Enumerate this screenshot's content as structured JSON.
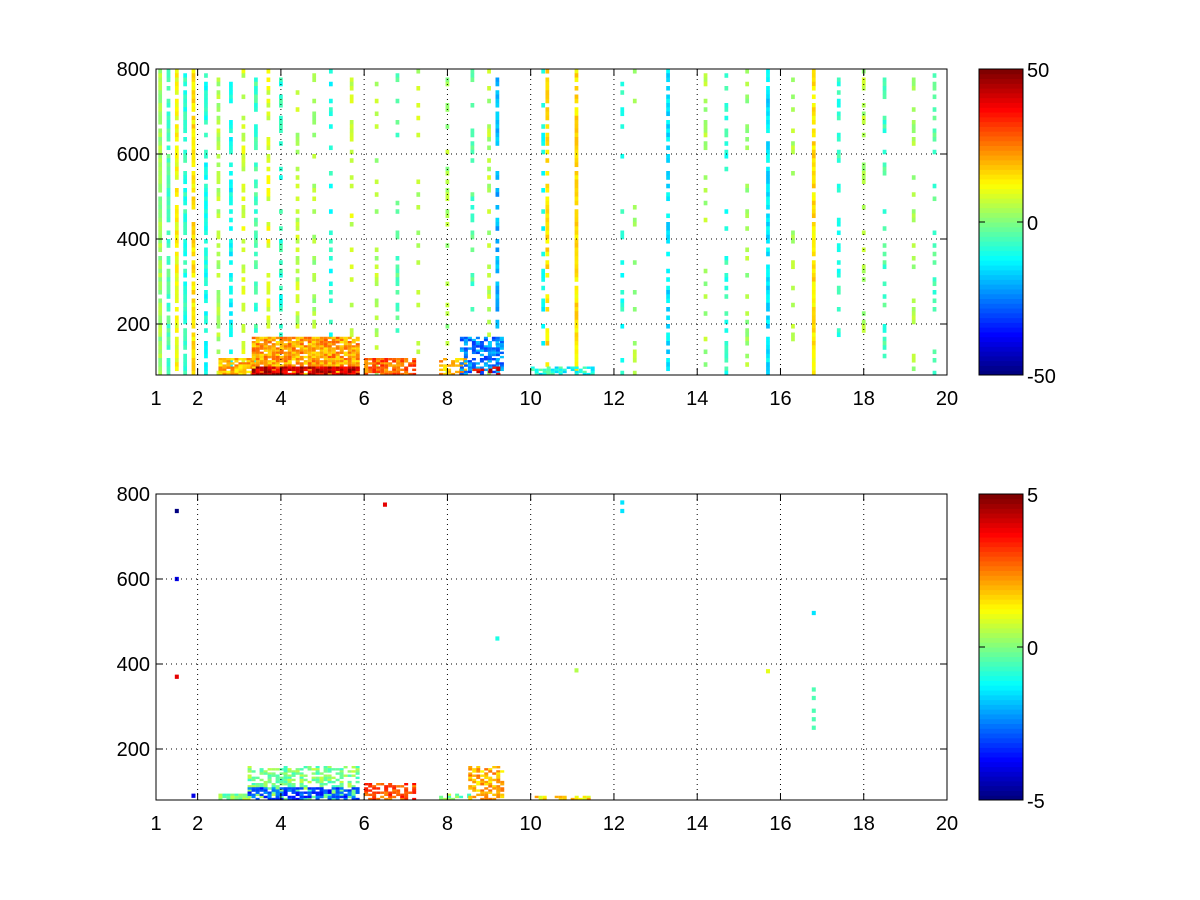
{
  "chart_data": [
    {
      "type": "heatmap",
      "title": "",
      "xlabel": "",
      "ylabel": "",
      "xlim": [
        1,
        20
      ],
      "ylim": [
        80,
        800
      ],
      "xticks": [
        1,
        2,
        4,
        6,
        8,
        10,
        12,
        14,
        16,
        18,
        20
      ],
      "yticks": [
        200,
        400,
        600,
        800
      ],
      "grid": true,
      "colormap": "jet",
      "colorbar": {
        "clim": [
          -50,
          50
        ],
        "ticks": [
          -50,
          0,
          50
        ]
      },
      "columns": [
        {
          "x": 1.1,
          "span": [
            80,
            800
          ],
          "value": 3,
          "density": 0.9
        },
        {
          "x": 1.3,
          "span": [
            80,
            800
          ],
          "value": -5,
          "density": 0.8
        },
        {
          "x": 1.5,
          "span": [
            80,
            800
          ],
          "value": 12,
          "density": 0.8
        },
        {
          "x": 1.7,
          "span": [
            80,
            800
          ],
          "value": -8,
          "density": 0.8
        },
        {
          "x": 1.9,
          "span": [
            80,
            800
          ],
          "value": 15,
          "density": 0.9
        },
        {
          "x": 2.2,
          "span": [
            80,
            800
          ],
          "value": -10,
          "density": 0.7
        },
        {
          "x": 2.5,
          "span": [
            80,
            800
          ],
          "value": 5,
          "density": 0.6
        },
        {
          "x": 2.8,
          "span": [
            80,
            800
          ],
          "value": -12,
          "density": 0.6
        },
        {
          "x": 3.1,
          "span": [
            80,
            800
          ],
          "value": 8,
          "density": 0.5
        },
        {
          "x": 3.4,
          "span": [
            80,
            800
          ],
          "value": -6,
          "density": 0.55
        },
        {
          "x": 3.7,
          "span": [
            80,
            800
          ],
          "value": 10,
          "density": 0.45
        },
        {
          "x": 4.0,
          "span": [
            80,
            800
          ],
          "value": -8,
          "density": 0.45
        },
        {
          "x": 4.4,
          "span": [
            80,
            800
          ],
          "value": 6,
          "density": 0.35
        },
        {
          "x": 4.8,
          "span": [
            80,
            800
          ],
          "value": 4,
          "density": 0.35
        },
        {
          "x": 5.2,
          "span": [
            80,
            800
          ],
          "value": -10,
          "density": 0.3
        },
        {
          "x": 5.7,
          "span": [
            80,
            800
          ],
          "value": 8,
          "density": 0.35
        },
        {
          "x": 6.3,
          "span": [
            80,
            800
          ],
          "value": 5,
          "density": 0.3
        },
        {
          "x": 6.8,
          "span": [
            80,
            800
          ],
          "value": -4,
          "density": 0.3
        },
        {
          "x": 7.3,
          "span": [
            80,
            800
          ],
          "value": 6,
          "density": 0.25
        },
        {
          "x": 8.0,
          "span": [
            80,
            800
          ],
          "value": 4,
          "density": 0.3
        },
        {
          "x": 8.6,
          "span": [
            80,
            800
          ],
          "value": -5,
          "density": 0.3
        },
        {
          "x": 9.0,
          "span": [
            80,
            800
          ],
          "value": 5,
          "density": 0.35
        },
        {
          "x": 9.2,
          "span": [
            80,
            800
          ],
          "value": -20,
          "density": 0.6
        },
        {
          "x": 10.3,
          "span": [
            80,
            800
          ],
          "value": -12,
          "density": 0.35
        },
        {
          "x": 10.4,
          "span": [
            80,
            800
          ],
          "value": 15,
          "density": 0.7
        },
        {
          "x": 11.1,
          "span": [
            80,
            800
          ],
          "value": 15,
          "density": 0.85
        },
        {
          "x": 12.2,
          "span": [
            80,
            800
          ],
          "value": -10,
          "density": 0.25
        },
        {
          "x": 12.5,
          "span": [
            80,
            800
          ],
          "value": 4,
          "density": 0.25
        },
        {
          "x": 13.3,
          "span": [
            80,
            800
          ],
          "value": -15,
          "density": 0.6
        },
        {
          "x": 14.2,
          "span": [
            80,
            800
          ],
          "value": 4,
          "density": 0.3
        },
        {
          "x": 14.7,
          "span": [
            80,
            800
          ],
          "value": -8,
          "density": 0.35
        },
        {
          "x": 15.2,
          "span": [
            80,
            800
          ],
          "value": 3,
          "density": 0.3
        },
        {
          "x": 15.7,
          "span": [
            80,
            800
          ],
          "value": -15,
          "density": 0.85
        },
        {
          "x": 16.3,
          "span": [
            80,
            800
          ],
          "value": 4,
          "density": 0.3
        },
        {
          "x": 16.8,
          "span": [
            80,
            800
          ],
          "value": 15,
          "density": 0.9
        },
        {
          "x": 17.4,
          "span": [
            80,
            800
          ],
          "value": -8,
          "density": 0.3
        },
        {
          "x": 18.0,
          "span": [
            80,
            800
          ],
          "value": 5,
          "density": 0.35
        },
        {
          "x": 18.5,
          "span": [
            80,
            800
          ],
          "value": -6,
          "density": 0.3
        },
        {
          "x": 19.2,
          "span": [
            80,
            800
          ],
          "value": 4,
          "density": 0.3
        },
        {
          "x": 19.7,
          "span": [
            80,
            800
          ],
          "value": -5,
          "density": 0.3
        }
      ],
      "patches": [
        {
          "x": [
            2.5,
            3.3
          ],
          "y": [
            80,
            120
          ],
          "value": 20,
          "density": 0.8
        },
        {
          "x": [
            3.3,
            5.8
          ],
          "y": [
            80,
            170
          ],
          "value": 22,
          "density": 0.9
        },
        {
          "x": [
            3.3,
            5.8
          ],
          "y": [
            80,
            100
          ],
          "value": 42,
          "density": 0.9
        },
        {
          "x": [
            6.0,
            7.2
          ],
          "y": [
            80,
            120
          ],
          "value": 28,
          "density": 0.8
        },
        {
          "x": [
            7.8,
            8.4
          ],
          "y": [
            80,
            120
          ],
          "value": 20,
          "density": 0.7
        },
        {
          "x": [
            8.3,
            9.3
          ],
          "y": [
            80,
            170
          ],
          "value": -25,
          "density": 0.6
        },
        {
          "x": [
            8.6,
            9.2
          ],
          "y": [
            80,
            100
          ],
          "value": 40,
          "density": 0.5
        },
        {
          "x": [
            10.0,
            11.5
          ],
          "y": [
            80,
            100
          ],
          "value": -10,
          "density": 0.6
        }
      ]
    },
    {
      "type": "heatmap",
      "title": "",
      "xlabel": "",
      "ylabel": "",
      "xlim": [
        1,
        20
      ],
      "ylim": [
        80,
        800
      ],
      "xticks": [
        1,
        2,
        4,
        6,
        8,
        10,
        12,
        14,
        16,
        18,
        20
      ],
      "yticks": [
        200,
        400,
        600,
        800
      ],
      "grid": true,
      "colormap": "jet",
      "colorbar": {
        "clim": [
          -5,
          5
        ],
        "ticks": [
          -5,
          0,
          5
        ]
      },
      "columns": [],
      "patches": [
        {
          "x": [
            2.5,
            3.2
          ],
          "y": [
            80,
            95
          ],
          "value": 0,
          "density": 0.9
        },
        {
          "x": [
            3.2,
            5.8
          ],
          "y": [
            80,
            160
          ],
          "value": 0,
          "density": 0.5
        },
        {
          "x": [
            3.2,
            5.8
          ],
          "y": [
            80,
            110
          ],
          "value": -3,
          "density": 0.6
        },
        {
          "x": [
            6.0,
            7.2
          ],
          "y": [
            80,
            120
          ],
          "value": 3,
          "density": 0.6
        },
        {
          "x": [
            7.8,
            8.5
          ],
          "y": [
            80,
            95
          ],
          "value": 0,
          "density": 0.7
        },
        {
          "x": [
            8.5,
            9.3
          ],
          "y": [
            80,
            160
          ],
          "value": 2,
          "density": 0.6
        },
        {
          "x": [
            10.0,
            11.5
          ],
          "y": [
            80,
            90
          ],
          "value": 1.5,
          "density": 0.6
        }
      ],
      "points": [
        {
          "x": 1.5,
          "y": 760,
          "value": -5
        },
        {
          "x": 1.5,
          "y": 600,
          "value": -4
        },
        {
          "x": 1.5,
          "y": 370,
          "value": 4
        },
        {
          "x": 1.9,
          "y": 90,
          "value": -4
        },
        {
          "x": 6.5,
          "y": 775,
          "value": 4
        },
        {
          "x": 9.2,
          "y": 460,
          "value": -1
        },
        {
          "x": 11.1,
          "y": 385,
          "value": 0.5
        },
        {
          "x": 12.2,
          "y": 780,
          "value": -1.5
        },
        {
          "x": 12.2,
          "y": 760,
          "value": -1.5
        },
        {
          "x": 15.7,
          "y": 383,
          "value": 1
        },
        {
          "x": 16.8,
          "y": 520,
          "value": -1.5
        },
        {
          "x": 16.8,
          "y": 340,
          "value": -0.5
        },
        {
          "x": 16.8,
          "y": 320,
          "value": -0.5
        },
        {
          "x": 16.8,
          "y": 290,
          "value": -0.5
        },
        {
          "x": 16.8,
          "y": 270,
          "value": -0.5
        },
        {
          "x": 16.8,
          "y": 250,
          "value": -0.5
        }
      ]
    }
  ]
}
